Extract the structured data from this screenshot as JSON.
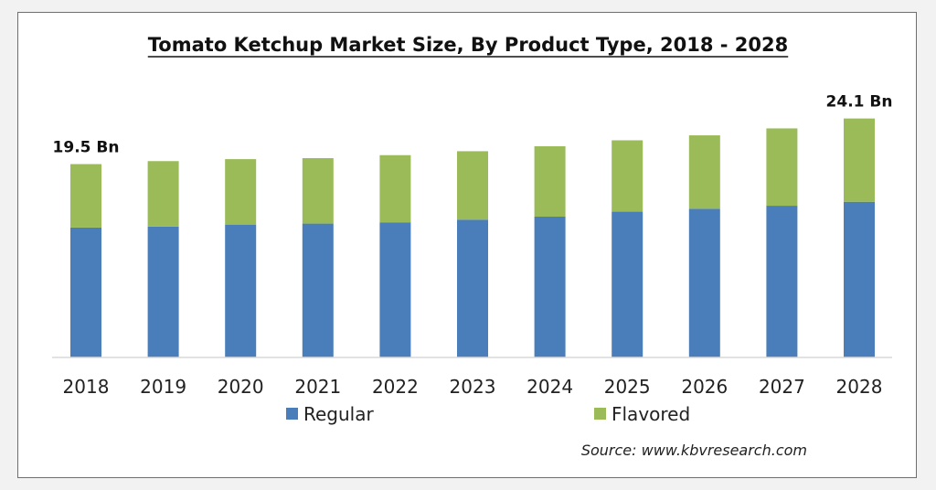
{
  "chart_data": {
    "type": "bar",
    "stacked": true,
    "title": "Tomato Ketchup Market Size, By Product Type, 2018 - 2028",
    "categories": [
      "2018",
      "2019",
      "2020",
      "2021",
      "2022",
      "2023",
      "2024",
      "2025",
      "2026",
      "2027",
      "2028"
    ],
    "series": [
      {
        "name": "Regular",
        "color": "#4a7ebb",
        "values": [
          13.1,
          13.2,
          13.4,
          13.5,
          13.6,
          13.9,
          14.2,
          14.7,
          15.0,
          15.3,
          15.7
        ]
      },
      {
        "name": "Flavored",
        "color": "#9bbb59",
        "values": [
          6.4,
          6.6,
          6.6,
          6.6,
          6.8,
          6.9,
          7.1,
          7.2,
          7.4,
          7.8,
          8.4
        ]
      }
    ],
    "annotations": [
      {
        "category": "2018",
        "text": "19.5 Bn"
      },
      {
        "category": "2028",
        "text": "24.1 Bn"
      }
    ],
    "ylim": [
      0,
      26
    ],
    "grid": false,
    "legend_position": "bottom",
    "source": "Source:  www.kbvresearch.com"
  }
}
